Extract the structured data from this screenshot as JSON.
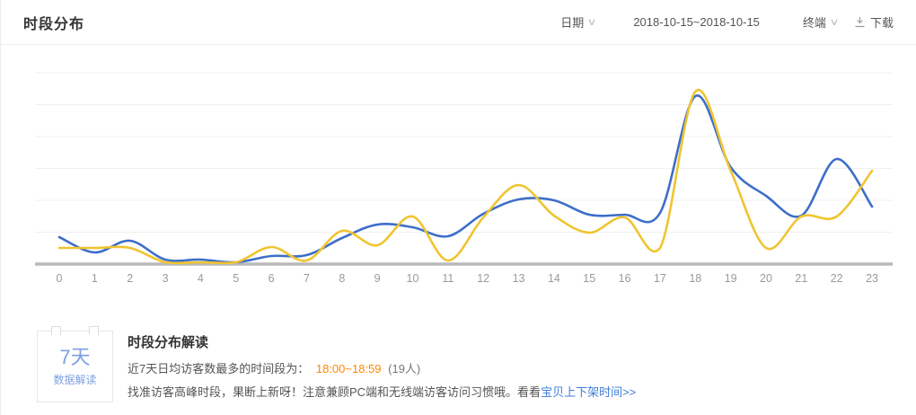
{
  "header": {
    "title": "时段分布",
    "date_label": "日期",
    "date_range": "2018-10-15~2018-10-15",
    "terminal_label": "终端",
    "download_label": "下载"
  },
  "chart_data": {
    "type": "line",
    "title": "时段分布",
    "xlabel": "",
    "ylabel": "",
    "x": [
      0,
      1,
      2,
      3,
      4,
      5,
      6,
      7,
      8,
      9,
      10,
      11,
      12,
      13,
      14,
      15,
      16,
      17,
      18,
      19,
      20,
      21,
      22,
      23
    ],
    "series": [
      {
        "name": "blue",
        "color": "#3d6ec9",
        "values": [
          3.0,
          1.3,
          2.6,
          0.5,
          0.5,
          0.2,
          0.9,
          1.0,
          2.9,
          4.4,
          4.1,
          3.1,
          5.6,
          7.2,
          7.1,
          5.5,
          5.5,
          5.7,
          18.7,
          10.8,
          7.6,
          5.4,
          11.7,
          6.4
        ]
      },
      {
        "name": "yellow",
        "color": "#f0c430",
        "values": [
          1.8,
          1.8,
          1.8,
          0.2,
          0.2,
          0.2,
          1.9,
          0.4,
          3.7,
          2.1,
          5.3,
          0.4,
          5.2,
          8.8,
          5.4,
          3.5,
          5.2,
          1.8,
          19.2,
          10.4,
          1.8,
          5.3,
          5.3,
          10.4
        ]
      }
    ],
    "ylim": [
      0,
      21.3
    ],
    "grid": true,
    "gridline_count": 6,
    "legend": "none",
    "smooth": true,
    "axis_color": "#b9b9b9",
    "grid_color": "#f0f0f0",
    "tick_color": "#9a9a9a"
  },
  "insight": {
    "badge_line1": "7天",
    "badge_line2": "数据解读",
    "heading": "时段分布解读",
    "line1_prefix": "近7天日均访客数最多的时间段为：",
    "line1_highlight": "18:00~18:59",
    "line1_suffix": "(19人)",
    "line2_text": "找准访客高峰时段，果断上新呀！注意兼顾PC端和无线端访客访问习惯哦。看看",
    "line2_link": "宝贝上下架时间>>"
  },
  "colors": {
    "highlight": "#ff8800",
    "link": "#3e7dd8",
    "badge_text": "#7c9fe3"
  }
}
